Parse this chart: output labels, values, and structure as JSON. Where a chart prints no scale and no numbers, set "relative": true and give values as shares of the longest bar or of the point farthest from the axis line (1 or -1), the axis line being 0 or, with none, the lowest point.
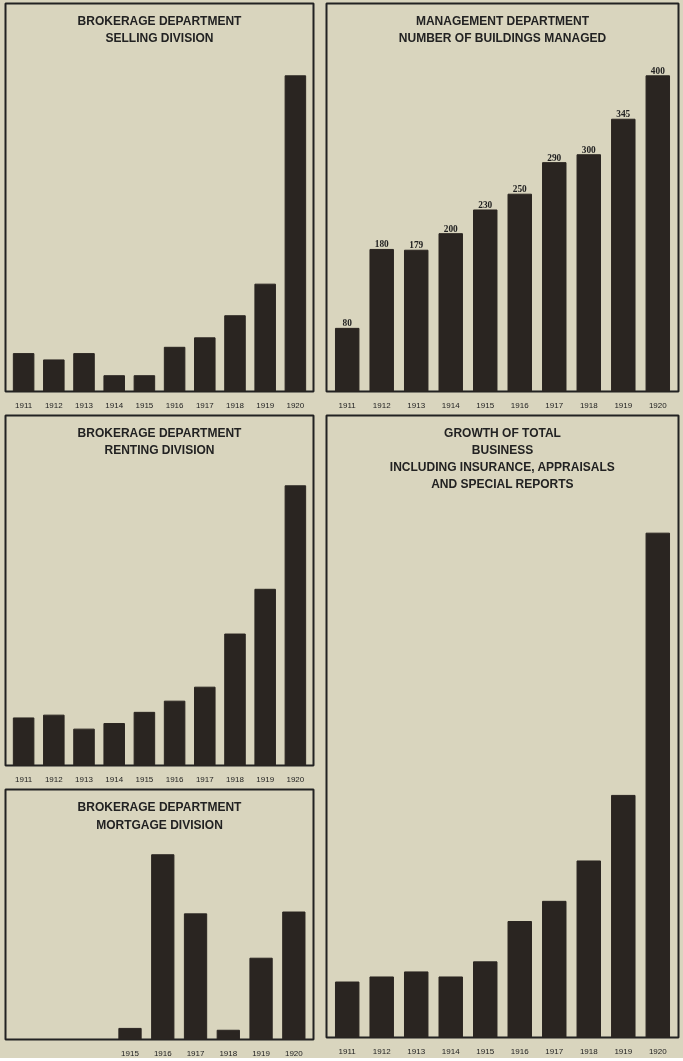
{
  "chart_data": [
    {
      "type": "bar",
      "title": "BROKERAGE DEPARTMENT SELLING DIVISION",
      "relative": true,
      "color": "#2a2521",
      "categories": [
        "1911",
        "1912",
        "1913",
        "1914",
        "1915",
        "1916",
        "1917",
        "1918",
        "1919",
        "1920"
      ],
      "values": [
        0.12,
        0.1,
        0.12,
        0.05,
        0.05,
        0.14,
        0.17,
        0.24,
        0.34,
        1
      ]
    },
    {
      "type": "bar",
      "title": "BROKERAGE DEPARTMENT RENTING DIVISION",
      "relative": true,
      "color": "#2a2521",
      "categories": [
        "1911",
        "1912",
        "1913",
        "1914",
        "1915",
        "1916",
        "1917",
        "1918",
        "1919",
        "1920"
      ],
      "values": [
        0.17,
        0.18,
        0.13,
        0.15,
        0.19,
        0.23,
        0.28,
        0.47,
        0.63,
        1
      ]
    },
    {
      "type": "bar",
      "title": "BROKERAGE DEPARTMENT MORTGAGE DIVISION",
      "relative": true,
      "color": "#2a2521",
      "categories": [
        "1915",
        "1916",
        "1917",
        "1918",
        "1919",
        "1920"
      ],
      "values": [
        0.06,
        1,
        0.68,
        0.05,
        0.44,
        0.69
      ]
    },
    {
      "type": "bar",
      "title": "MANAGEMENT DEPARTMENT",
      "subtitle": "NUMBER OF BUILDINGS MANAGED",
      "data_labels": true,
      "tick_labels": "x",
      "color": "#2a2521",
      "categories": [
        "1911",
        "1912",
        "1913",
        "1914",
        "1915",
        "1916",
        "1917",
        "1918",
        "1919",
        "1920"
      ],
      "values": [
        80,
        180,
        179,
        200,
        230,
        250,
        290,
        300,
        345,
        400
      ]
    },
    {
      "type": "bar",
      "title": "GROWTH OF TOTAL BUSINESS",
      "subtitle": "INCLUDING INSURANCE, APPRAISALS AND SPECIAL REPORTS",
      "relative": true,
      "color": "#2a2521",
      "categories": [
        "1911",
        "1912",
        "1913",
        "1914",
        "1915",
        "1916",
        "1917",
        "1918",
        "1919",
        "1920"
      ],
      "values": [
        0.11,
        0.12,
        0.13,
        0.12,
        0.15,
        0.23,
        0.27,
        0.35,
        0.48,
        1
      ]
    }
  ]
}
